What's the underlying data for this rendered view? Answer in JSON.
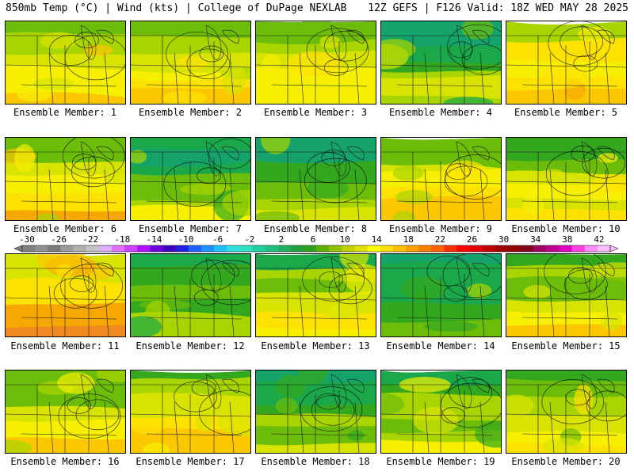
{
  "header": {
    "left_title": "850mb Temp (°C) | Wind (kts) | College of DuPage NEXLAB",
    "right_title": "12Z GEFS | F126 Valid: 18Z WED MAY 28 2025"
  },
  "panels": [
    {
      "label": "Ensemble Member: 1"
    },
    {
      "label": "Ensemble Member: 2"
    },
    {
      "label": "Ensemble Member: 3"
    },
    {
      "label": "Ensemble Member: 4"
    },
    {
      "label": "Ensemble Member: 5"
    },
    {
      "label": "Ensemble Member: 6"
    },
    {
      "label": "Ensemble Member: 7"
    },
    {
      "label": "Ensemble Member: 8"
    },
    {
      "label": "Ensemble Member: 9"
    },
    {
      "label": "Ensemble Member: 10"
    },
    {
      "label": "Ensemble Member: 11"
    },
    {
      "label": "Ensemble Member: 12"
    },
    {
      "label": "Ensemble Member: 13"
    },
    {
      "label": "Ensemble Member: 14"
    },
    {
      "label": "Ensemble Member: 15"
    },
    {
      "label": "Ensemble Member: 16"
    },
    {
      "label": "Ensemble Member: 17"
    },
    {
      "label": "Ensemble Member: 18"
    },
    {
      "label": "Ensemble Member: 19"
    },
    {
      "label": "Ensemble Member: 20"
    }
  ],
  "colorbar": {
    "tick_labels": [
      "-30",
      "-26",
      "-22",
      "-18",
      "-14",
      "-10",
      "-6",
      "-2",
      "2",
      "6",
      "10",
      "14",
      "18",
      "22",
      "26",
      "30",
      "34",
      "38",
      "42"
    ],
    "colors": [
      "#808080",
      "#909090",
      "#7a7a7a",
      "#9a9a9a",
      "#b0b0b0",
      "#c4c4c4",
      "#dcb0ff",
      "#e070ff",
      "#d040ff",
      "#b010ff",
      "#7000e0",
      "#4000c0",
      "#2020e0",
      "#2060ff",
      "#2090ff",
      "#20c0ff",
      "#30e0e0",
      "#30e0c0",
      "#20d0a0",
      "#20c080",
      "#20b060",
      "#20a040",
      "#30a020",
      "#60b000",
      "#90c000",
      "#c0d000",
      "#e0e000",
      "#ffff00",
      "#ffe000",
      "#ffc000",
      "#ffa000",
      "#ff8000",
      "#ff6000",
      "#ff3000",
      "#ff0000",
      "#e00000",
      "#c00000",
      "#a00000",
      "#900000",
      "#800020",
      "#a00060",
      "#c00090",
      "#e000c0",
      "#ff40e0",
      "#ff90ff",
      "#ffc0ff"
    ]
  }
}
